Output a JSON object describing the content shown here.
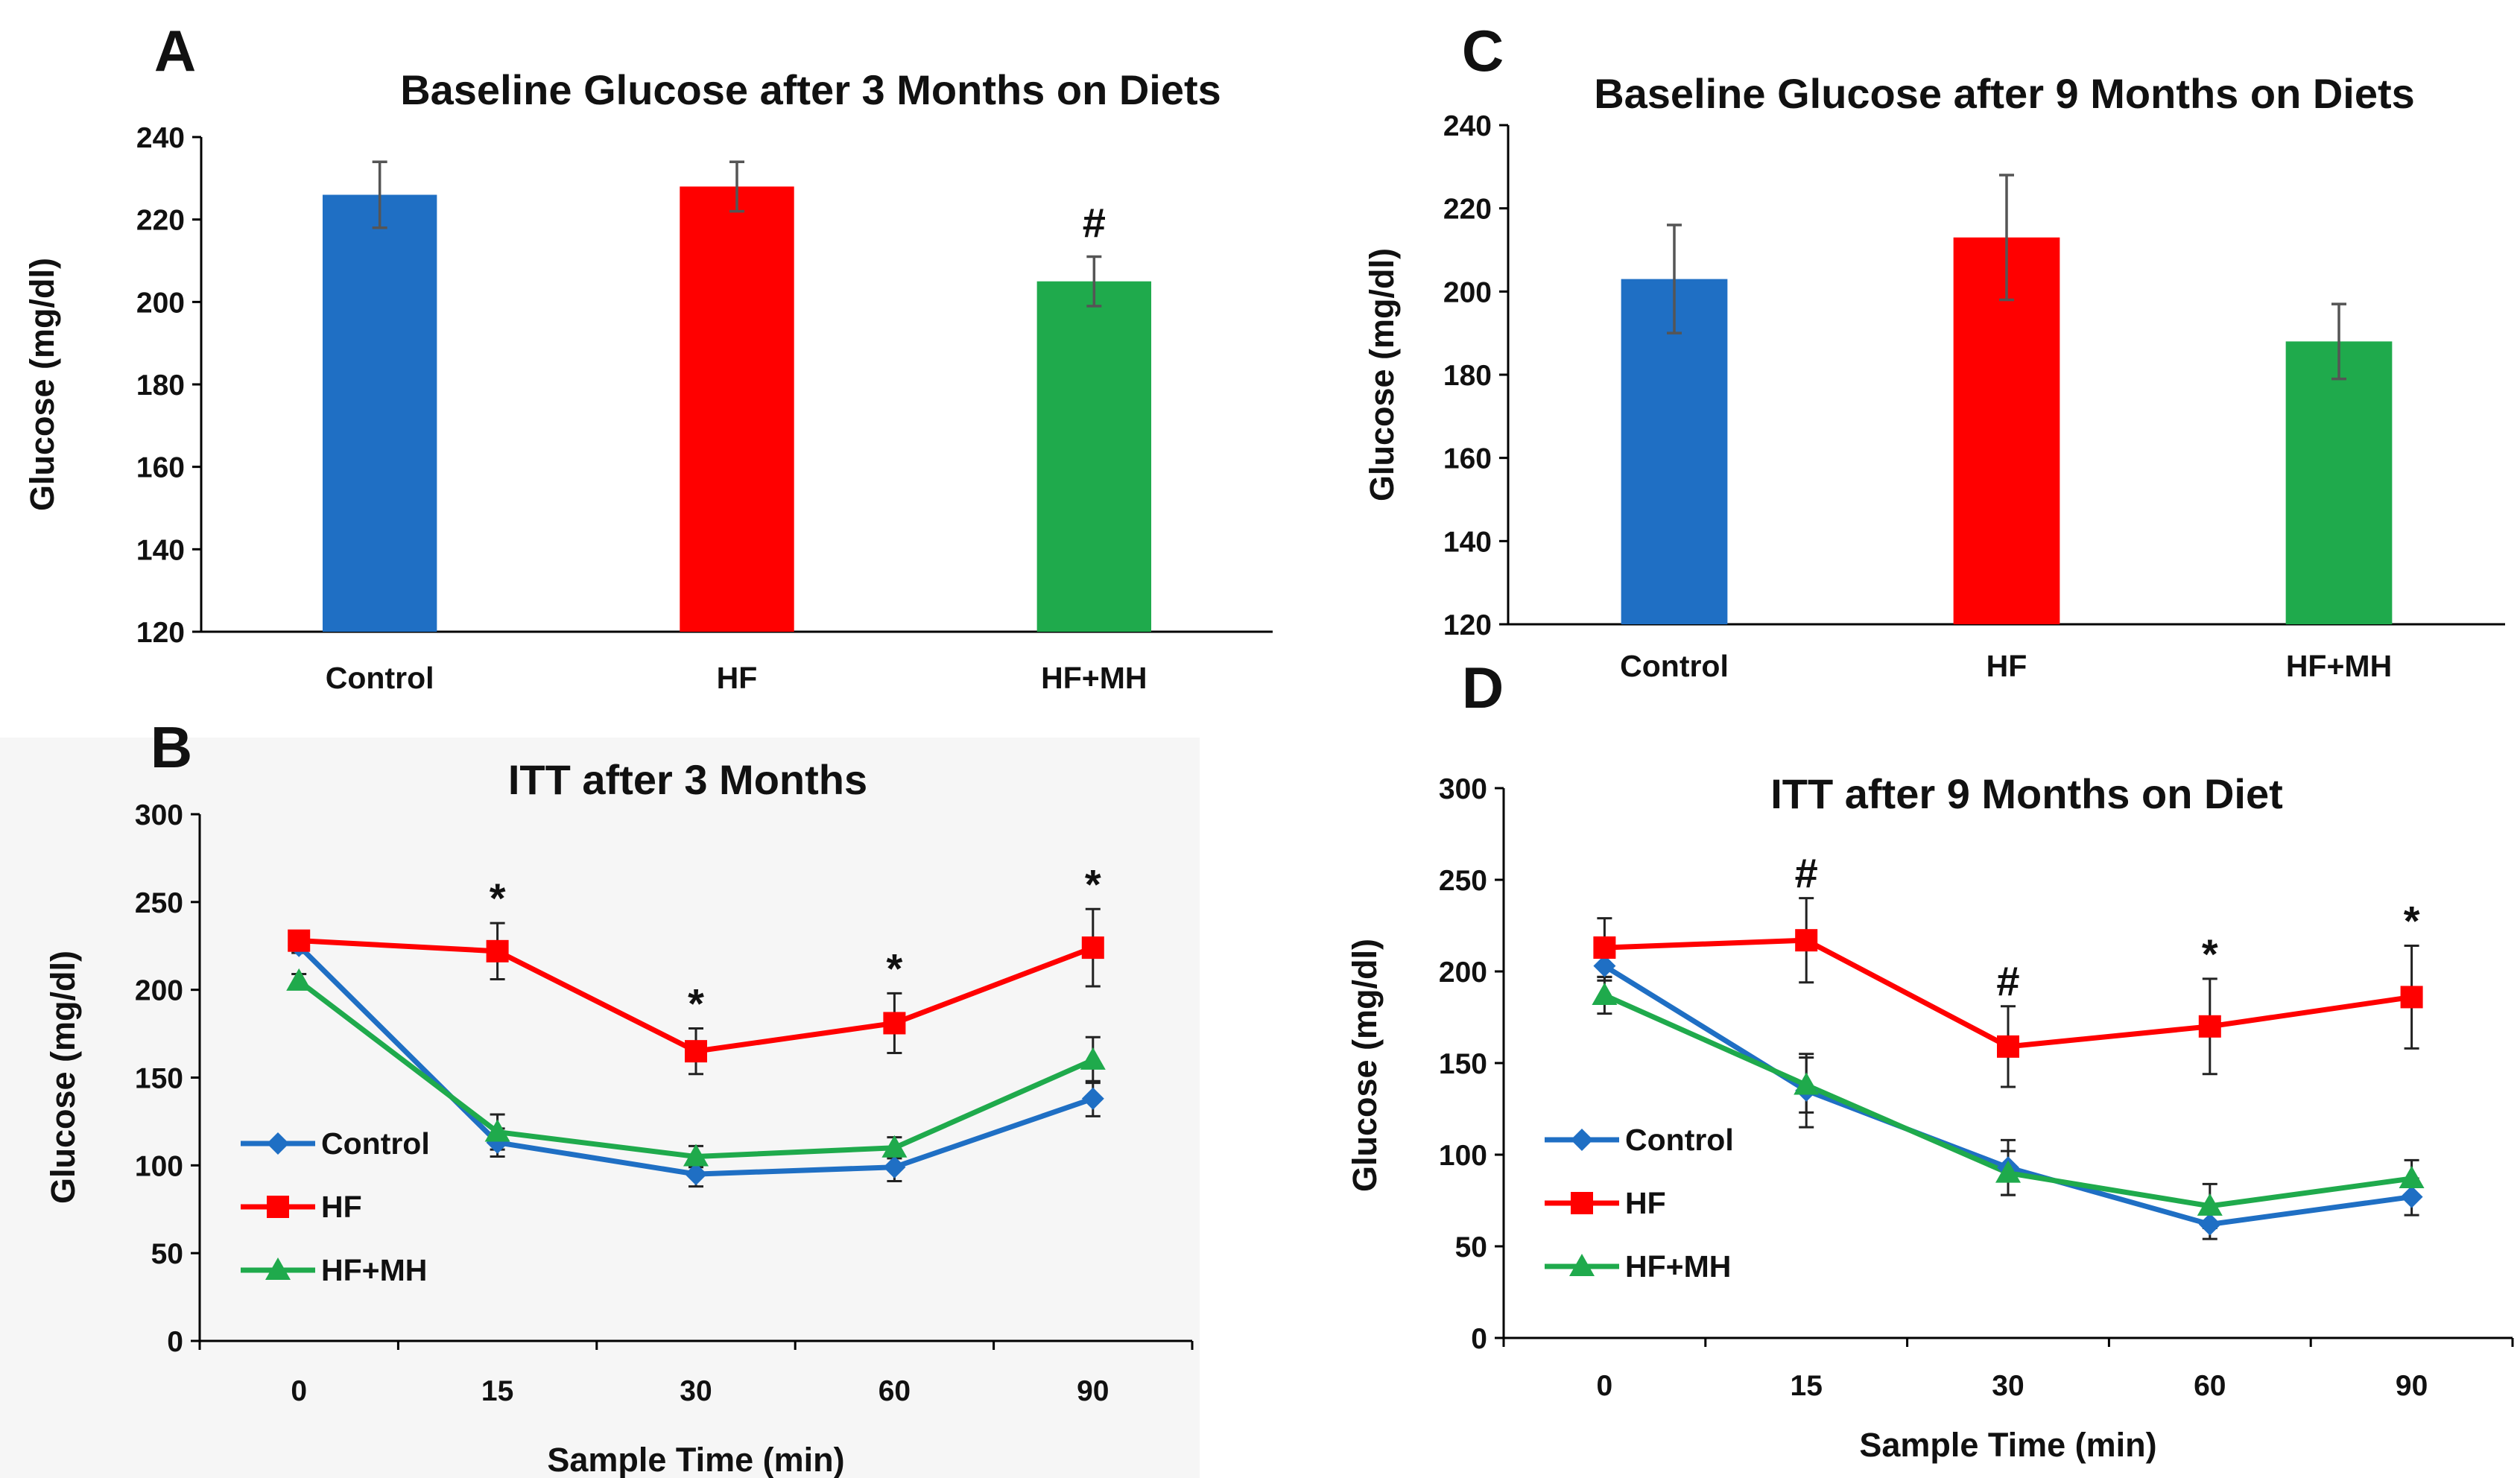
{
  "colors": {
    "Control": "#1f6fc4",
    "HF": "#ff0000",
    "HF+MH": "#1faa4c"
  },
  "chart_data": [
    {
      "panel": "A",
      "type": "bar",
      "title": "Baseline Glucose after 3 Months on Diets",
      "xlabel": "",
      "ylabel": "Glucose (mg/dl)",
      "ylim": [
        120,
        240
      ],
      "yticks": [
        120,
        140,
        160,
        180,
        200,
        220,
        240
      ],
      "categories": [
        "Control",
        "HF",
        "HF+MH"
      ],
      "values": [
        226,
        228,
        205
      ],
      "errors": [
        8,
        6,
        6
      ],
      "markers": [
        "",
        "",
        "#"
      ]
    },
    {
      "panel": "C",
      "type": "bar",
      "title": "Baseline Glucose after 9 Months on Diets",
      "xlabel": "",
      "ylabel": "Glucose (mg/dl)",
      "ylim": [
        120,
        240
      ],
      "yticks": [
        120,
        140,
        160,
        180,
        200,
        220,
        240
      ],
      "categories": [
        "Control",
        "HF",
        "HF+MH"
      ],
      "values": [
        203,
        213,
        188
      ],
      "errors": [
        13,
        15,
        9
      ],
      "markers": [
        "",
        "",
        ""
      ]
    },
    {
      "panel": "B",
      "type": "line",
      "title": "ITT after 3 Months",
      "xlabel": "Sample Time (min)",
      "ylabel": "Glucose (mg/dl)",
      "ylim": [
        0,
        300
      ],
      "yticks": [
        0,
        50,
        100,
        150,
        200,
        250,
        300
      ],
      "x": [
        "0",
        "15",
        "30",
        "60",
        "90"
      ],
      "series": [
        {
          "name": "Control",
          "marker": "diamond",
          "values": [
            225,
            113,
            95,
            99,
            138
          ],
          "errors": [
            4,
            8,
            7,
            8,
            10
          ]
        },
        {
          "name": "HF",
          "marker": "square",
          "values": [
            228,
            222,
            165,
            181,
            224
          ],
          "errors": [
            3,
            16,
            13,
            17,
            22
          ]
        },
        {
          "name": "HF+MH",
          "marker": "triangle",
          "values": [
            205,
            119,
            105,
            110,
            160
          ],
          "errors": [
            4,
            10,
            6,
            6,
            13
          ]
        }
      ],
      "annotations": [
        "",
        "*",
        "*",
        "*",
        "*"
      ]
    },
    {
      "panel": "D",
      "type": "line",
      "title": "ITT after 9 Months on Diet",
      "xlabel": "Sample Time (min)",
      "ylabel": "Glucose (mg/dl)",
      "ylim": [
        0,
        300
      ],
      "yticks": [
        0,
        50,
        100,
        150,
        200,
        250,
        300
      ],
      "x": [
        "0",
        "15",
        "30",
        "60",
        "90"
      ],
      "series": [
        {
          "name": "Control",
          "marker": "diamond",
          "values": [
            203,
            135,
            93,
            62,
            77
          ],
          "errors": [
            8,
            20,
            15,
            8,
            10
          ]
        },
        {
          "name": "HF",
          "marker": "square",
          "values": [
            213,
            217,
            159,
            170,
            186
          ],
          "errors": [
            16,
            23,
            22,
            26,
            28
          ]
        },
        {
          "name": "HF+MH",
          "marker": "triangle",
          "values": [
            187,
            138,
            90,
            72,
            87
          ],
          "errors": [
            10,
            15,
            12,
            12,
            10
          ]
        }
      ],
      "annotations": [
        "",
        "#",
        "#",
        "*",
        "*"
      ]
    }
  ]
}
